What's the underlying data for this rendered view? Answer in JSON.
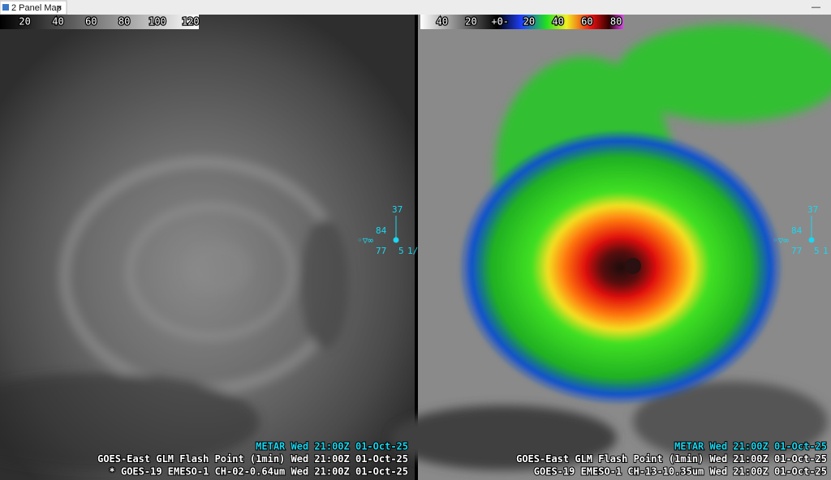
{
  "tab": {
    "title": "2 Panel Map"
  },
  "panels": [
    {
      "colorbar": {
        "labels": [
          "20",
          "40",
          "60",
          "80",
          "100",
          "120"
        ]
      },
      "station": {
        "top": "37",
        "temp": "84",
        "dewpoint": "77",
        "wind": "5",
        "vis": "1/"
      },
      "legend": [
        "METAR Wed 21:00Z 01-Oct-25",
        "GOES-East GLM Flash Point (1min)  Wed 21:00Z 01-Oct-25",
        "* GOES-19 EMESO-1 CH-02-0.64um  Wed 21:00Z 01-Oct-25"
      ]
    },
    {
      "colorbar": {
        "labels": [
          "40",
          "20",
          "+0-",
          "20",
          "40",
          "60",
          "80"
        ]
      },
      "station": {
        "top": "37",
        "temp": "84",
        "dewpoint": "77",
        "wind": "5",
        "vis": "1"
      },
      "legend": [
        "METAR Wed 21:00Z 01-Oct-25",
        "GOES-East GLM Flash Point (1min)  Wed 21:00Z 01-Oct-25",
        "GOES-19 EMESO-1 CH-13-10.35um  Wed 21:00Z 01-Oct-25"
      ]
    }
  ]
}
